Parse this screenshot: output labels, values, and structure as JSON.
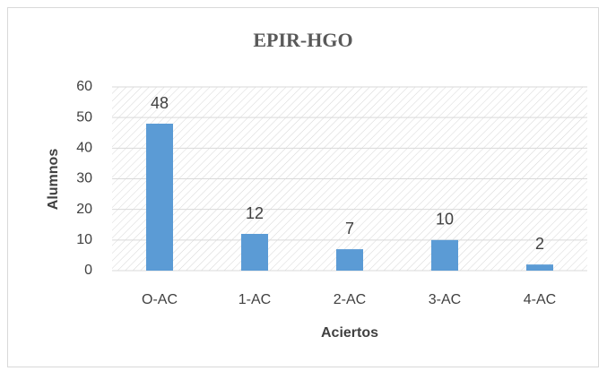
{
  "chart_data": {
    "type": "bar",
    "title": "EPIR-HGO",
    "categories": [
      "O-AC",
      "1-AC",
      "2-AC",
      "3-AC",
      "4-AC"
    ],
    "values": [
      48,
      12,
      7,
      10,
      2
    ],
    "color": "#5b9bd5",
    "xlabel": "Aciertos",
    "ylabel": "Alumnos",
    "ylim": [
      0,
      60
    ],
    "yticks": [
      0,
      10,
      20,
      30,
      40,
      50,
      60
    ],
    "grid": true
  }
}
